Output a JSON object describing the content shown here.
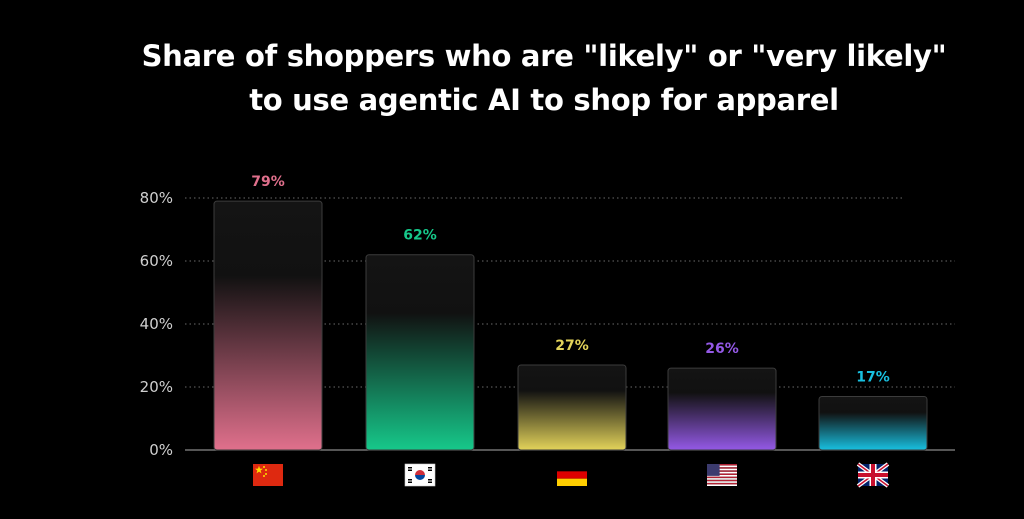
{
  "title": {
    "line1": "Share of shoppers who are \"likely\" or \"very likely\"",
    "line2": "to use agentic AI to shop for apparel"
  },
  "chart_data": {
    "type": "bar",
    "categories": [
      "China",
      "South Korea",
      "Germany",
      "United States",
      "United Kingdom"
    ],
    "values": [
      79,
      62,
      27,
      26,
      17
    ],
    "value_labels": [
      "79%",
      "62%",
      "27%",
      "26%",
      "17%"
    ],
    "colors": [
      "#e0708c",
      "#16c88a",
      "#e3d35a",
      "#9459e6",
      "#18c0e0"
    ],
    "icons": [
      "flag-china-icon",
      "flag-south-korea-icon",
      "flag-germany-icon",
      "flag-usa-icon",
      "flag-uk-icon"
    ],
    "ylim": [
      0,
      80
    ],
    "yticks": [
      0,
      20,
      40,
      60,
      80
    ],
    "ytick_labels": [
      "0%",
      "20%",
      "40%",
      "60%",
      "80%"
    ],
    "grid": true,
    "xlabel": "",
    "ylabel": ""
  }
}
